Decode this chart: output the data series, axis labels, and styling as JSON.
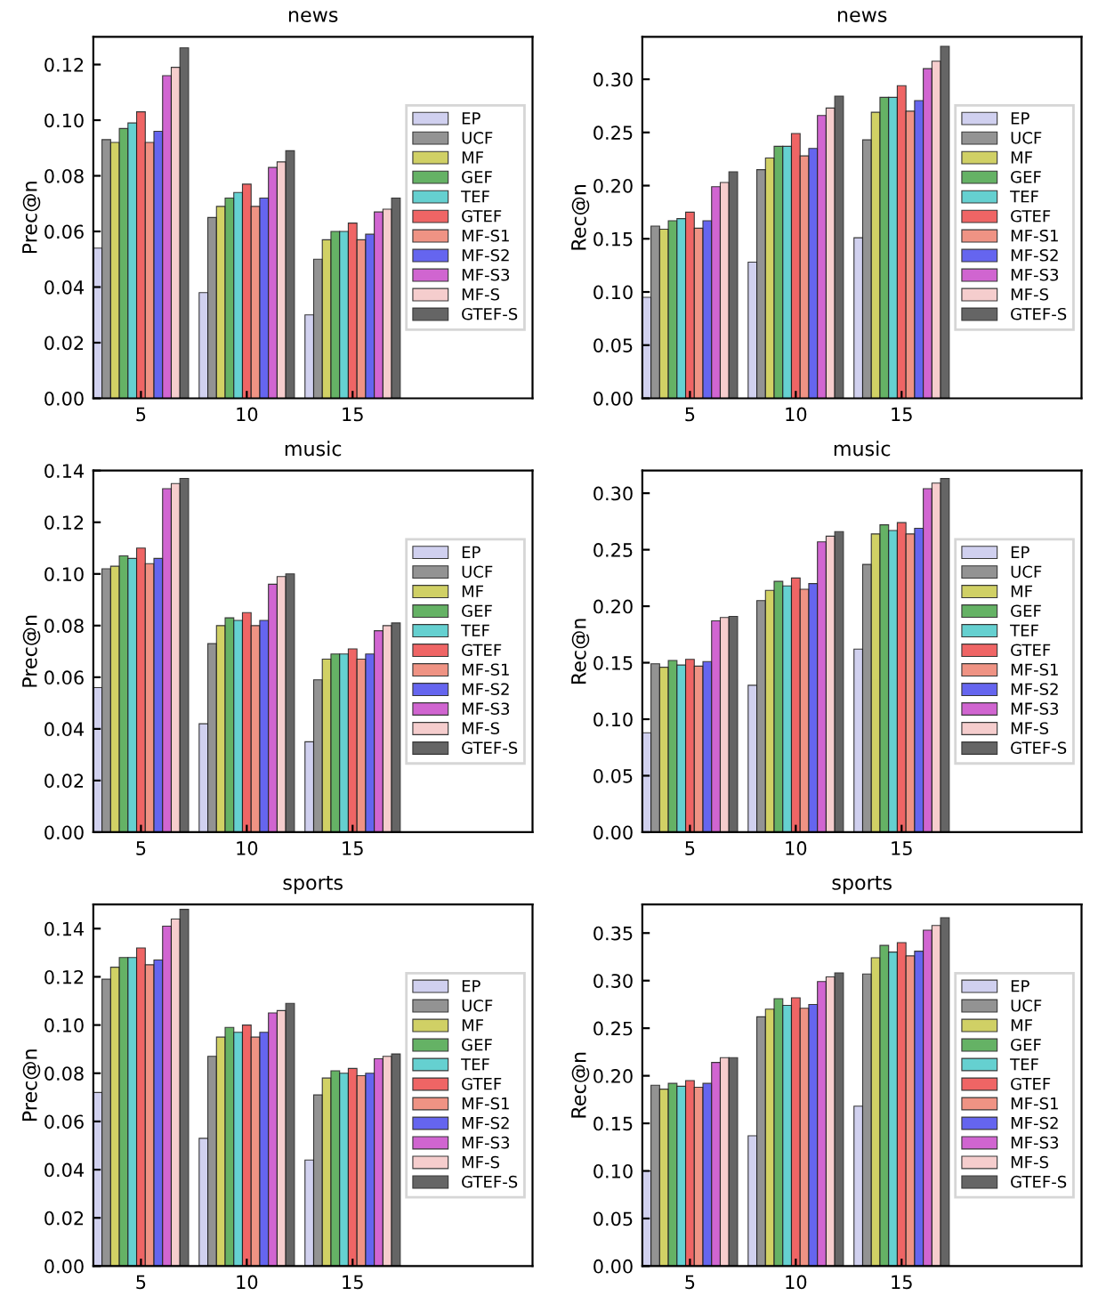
{
  "chart_data": [
    {
      "type": "bar",
      "title": "news",
      "ylabel": "Prec@n",
      "categories": [
        "5",
        "10",
        "15"
      ],
      "ylim": [
        0,
        0.13
      ],
      "yticks": [
        {
          "value": 0,
          "label": "0.00"
        },
        0.02,
        0.04,
        0.06,
        0.08,
        {
          "value": 0.1,
          "label": "0.10"
        },
        0.12
      ],
      "legend": "right",
      "grid": false,
      "series": [
        {
          "name": "EP",
          "color": "#ccccee",
          "values": [
            0.054,
            0.038,
            0.03
          ]
        },
        {
          "name": "UCF",
          "color": "#888888",
          "values": [
            0.093,
            0.065,
            0.05
          ]
        },
        {
          "name": "MF",
          "color": "#cccc55",
          "values": [
            0.092,
            0.069,
            0.057
          ]
        },
        {
          "name": "GEF",
          "color": "#55aa55",
          "values": [
            0.097,
            0.072,
            0.06
          ]
        },
        {
          "name": "TEF",
          "color": "#55cccc",
          "values": [
            0.099,
            0.074,
            0.06
          ]
        },
        {
          "name": "GTEF",
          "color": "#ee5555",
          "values": [
            0.103,
            0.077,
            0.063
          ]
        },
        {
          "name": "MF-S1",
          "color": "#ee8877",
          "values": [
            0.092,
            0.069,
            0.057
          ]
        },
        {
          "name": "MF-S2",
          "color": "#5555ee",
          "values": [
            0.096,
            0.072,
            0.059
          ]
        },
        {
          "name": "MF-S3",
          "color": "#cc55cc",
          "values": [
            0.116,
            0.083,
            0.067
          ]
        },
        {
          "name": "MF-S",
          "color": "#f5c8c8",
          "values": [
            0.119,
            0.085,
            0.068
          ]
        },
        {
          "name": "GTEF-S",
          "color": "#555555",
          "values": [
            0.126,
            0.089,
            0.072
          ]
        }
      ]
    },
    {
      "type": "bar",
      "title": "news",
      "ylabel": "Rec@n",
      "categories": [
        "5",
        "10",
        "15"
      ],
      "ylim": [
        0,
        0.34
      ],
      "yticks": [
        {
          "value": 0,
          "label": "0.00"
        },
        0.05,
        {
          "value": 0.1,
          "label": "0.10"
        },
        0.15,
        {
          "value": 0.2,
          "label": "0.20"
        },
        0.25,
        {
          "value": 0.3,
          "label": "0.30"
        }
      ],
      "legend": "right",
      "grid": false,
      "series": [
        {
          "name": "EP",
          "color": "#ccccee",
          "values": [
            0.095,
            0.128,
            0.151
          ]
        },
        {
          "name": "UCF",
          "color": "#888888",
          "values": [
            0.162,
            0.215,
            0.243
          ]
        },
        {
          "name": "MF",
          "color": "#cccc55",
          "values": [
            0.159,
            0.226,
            0.269
          ]
        },
        {
          "name": "GEF",
          "color": "#55aa55",
          "values": [
            0.167,
            0.237,
            0.283
          ]
        },
        {
          "name": "TEF",
          "color": "#55cccc",
          "values": [
            0.169,
            0.237,
            0.283
          ]
        },
        {
          "name": "GTEF",
          "color": "#ee5555",
          "values": [
            0.175,
            0.249,
            0.294
          ]
        },
        {
          "name": "MF-S1",
          "color": "#ee8877",
          "values": [
            0.16,
            0.228,
            0.27
          ]
        },
        {
          "name": "MF-S2",
          "color": "#5555ee",
          "values": [
            0.167,
            0.235,
            0.28
          ]
        },
        {
          "name": "MF-S3",
          "color": "#cc55cc",
          "values": [
            0.199,
            0.266,
            0.31
          ]
        },
        {
          "name": "MF-S",
          "color": "#f5c8c8",
          "values": [
            0.203,
            0.273,
            0.317
          ]
        },
        {
          "name": "GTEF-S",
          "color": "#555555",
          "values": [
            0.213,
            0.284,
            0.331
          ]
        }
      ]
    },
    {
      "type": "bar",
      "title": "music",
      "ylabel": "Prec@n",
      "categories": [
        "5",
        "10",
        "15"
      ],
      "ylim": [
        0,
        0.14
      ],
      "yticks": [
        {
          "value": 0,
          "label": "0.00"
        },
        0.02,
        0.04,
        0.06,
        0.08,
        {
          "value": 0.1,
          "label": "0.10"
        },
        0.12,
        0.14
      ],
      "legend": "right",
      "grid": false,
      "series": [
        {
          "name": "EP",
          "color": "#ccccee",
          "values": [
            0.056,
            0.042,
            0.035
          ]
        },
        {
          "name": "UCF",
          "color": "#888888",
          "values": [
            0.102,
            0.073,
            0.059
          ]
        },
        {
          "name": "MF",
          "color": "#cccc55",
          "values": [
            0.103,
            0.08,
            0.067
          ]
        },
        {
          "name": "GEF",
          "color": "#55aa55",
          "values": [
            0.107,
            0.083,
            0.069
          ]
        },
        {
          "name": "TEF",
          "color": "#55cccc",
          "values": [
            0.106,
            0.082,
            0.069
          ]
        },
        {
          "name": "GTEF",
          "color": "#ee5555",
          "values": [
            0.11,
            0.085,
            0.071
          ]
        },
        {
          "name": "MF-S1",
          "color": "#ee8877",
          "values": [
            0.104,
            0.08,
            0.067
          ]
        },
        {
          "name": "MF-S2",
          "color": "#5555ee",
          "values": [
            0.106,
            0.082,
            0.069
          ]
        },
        {
          "name": "MF-S3",
          "color": "#cc55cc",
          "values": [
            0.133,
            0.096,
            0.078
          ]
        },
        {
          "name": "MF-S",
          "color": "#f5c8c8",
          "values": [
            0.135,
            0.099,
            0.08
          ]
        },
        {
          "name": "GTEF-S",
          "color": "#555555",
          "values": [
            0.137,
            0.1,
            0.081
          ]
        }
      ]
    },
    {
      "type": "bar",
      "title": "music",
      "ylabel": "Rec@n",
      "categories": [
        "5",
        "10",
        "15"
      ],
      "ylim": [
        0,
        0.32
      ],
      "yticks": [
        {
          "value": 0,
          "label": "0.00"
        },
        0.05,
        {
          "value": 0.1,
          "label": "0.10"
        },
        0.15,
        {
          "value": 0.2,
          "label": "0.20"
        },
        0.25,
        {
          "value": 0.3,
          "label": "0.30"
        }
      ],
      "legend": "right",
      "grid": false,
      "series": [
        {
          "name": "EP",
          "color": "#ccccee",
          "values": [
            0.088,
            0.13,
            0.162
          ]
        },
        {
          "name": "UCF",
          "color": "#888888",
          "values": [
            0.149,
            0.205,
            0.237
          ]
        },
        {
          "name": "MF",
          "color": "#cccc55",
          "values": [
            0.146,
            0.214,
            0.264
          ]
        },
        {
          "name": "GEF",
          "color": "#55aa55",
          "values": [
            0.152,
            0.222,
            0.272
          ]
        },
        {
          "name": "TEF",
          "color": "#55cccc",
          "values": [
            0.148,
            0.218,
            0.267
          ]
        },
        {
          "name": "GTEF",
          "color": "#ee5555",
          "values": [
            0.153,
            0.225,
            0.274
          ]
        },
        {
          "name": "MF-S1",
          "color": "#ee8877",
          "values": [
            0.147,
            0.215,
            0.264
          ]
        },
        {
          "name": "MF-S2",
          "color": "#5555ee",
          "values": [
            0.151,
            0.22,
            0.269
          ]
        },
        {
          "name": "MF-S3",
          "color": "#cc55cc",
          "values": [
            0.187,
            0.257,
            0.304
          ]
        },
        {
          "name": "MF-S",
          "color": "#f5c8c8",
          "values": [
            0.19,
            0.262,
            0.309
          ]
        },
        {
          "name": "GTEF-S",
          "color": "#555555",
          "values": [
            0.191,
            0.266,
            0.313
          ]
        }
      ]
    },
    {
      "type": "bar",
      "title": "sports",
      "ylabel": "Prec@n",
      "categories": [
        "5",
        "10",
        "15"
      ],
      "ylim": [
        0,
        0.15
      ],
      "yticks": [
        {
          "value": 0,
          "label": "0.00"
        },
        0.02,
        0.04,
        0.06,
        0.08,
        {
          "value": 0.1,
          "label": "0.10"
        },
        0.12,
        0.14
      ],
      "legend": "right",
      "grid": false,
      "series": [
        {
          "name": "EP",
          "color": "#ccccee",
          "values": [
            0.072,
            0.053,
            0.044
          ]
        },
        {
          "name": "UCF",
          "color": "#888888",
          "values": [
            0.119,
            0.087,
            0.071
          ]
        },
        {
          "name": "MF",
          "color": "#cccc55",
          "values": [
            0.124,
            0.095,
            0.078
          ]
        },
        {
          "name": "GEF",
          "color": "#55aa55",
          "values": [
            0.128,
            0.099,
            0.081
          ]
        },
        {
          "name": "TEF",
          "color": "#55cccc",
          "values": [
            0.128,
            0.097,
            0.08
          ]
        },
        {
          "name": "GTEF",
          "color": "#ee5555",
          "values": [
            0.132,
            0.1,
            0.082
          ]
        },
        {
          "name": "MF-S1",
          "color": "#ee8877",
          "values": [
            0.125,
            0.095,
            0.079
          ]
        },
        {
          "name": "MF-S2",
          "color": "#5555ee",
          "values": [
            0.127,
            0.097,
            0.08
          ]
        },
        {
          "name": "MF-S3",
          "color": "#cc55cc",
          "values": [
            0.141,
            0.105,
            0.086
          ]
        },
        {
          "name": "MF-S",
          "color": "#f5c8c8",
          "values": [
            0.144,
            0.106,
            0.087
          ]
        },
        {
          "name": "GTEF-S",
          "color": "#555555",
          "values": [
            0.148,
            0.109,
            0.088
          ]
        }
      ]
    },
    {
      "type": "bar",
      "title": "sports",
      "ylabel": "Rec@n",
      "categories": [
        "5",
        "10",
        "15"
      ],
      "ylim": [
        0,
        0.38
      ],
      "yticks": [
        {
          "value": 0,
          "label": "0.00"
        },
        0.05,
        {
          "value": 0.1,
          "label": "0.10"
        },
        0.15,
        {
          "value": 0.2,
          "label": "0.20"
        },
        0.25,
        {
          "value": 0.3,
          "label": "0.30"
        },
        0.35
      ],
      "legend": "right",
      "grid": false,
      "series": [
        {
          "name": "EP",
          "color": "#ccccee",
          "values": [
            0.1,
            0.137,
            0.168
          ]
        },
        {
          "name": "UCF",
          "color": "#888888",
          "values": [
            0.19,
            0.262,
            0.307
          ]
        },
        {
          "name": "MF",
          "color": "#cccc55",
          "values": [
            0.186,
            0.27,
            0.324
          ]
        },
        {
          "name": "GEF",
          "color": "#55aa55",
          "values": [
            0.192,
            0.281,
            0.337
          ]
        },
        {
          "name": "TEF",
          "color": "#55cccc",
          "values": [
            0.189,
            0.274,
            0.33
          ]
        },
        {
          "name": "GTEF",
          "color": "#ee5555",
          "values": [
            0.195,
            0.282,
            0.34
          ]
        },
        {
          "name": "MF-S1",
          "color": "#ee8877",
          "values": [
            0.188,
            0.271,
            0.326
          ]
        },
        {
          "name": "MF-S2",
          "color": "#5555ee",
          "values": [
            0.192,
            0.275,
            0.331
          ]
        },
        {
          "name": "MF-S3",
          "color": "#cc55cc",
          "values": [
            0.214,
            0.299,
            0.353
          ]
        },
        {
          "name": "MF-S",
          "color": "#f5c8c8",
          "values": [
            0.219,
            0.304,
            0.358
          ]
        },
        {
          "name": "GTEF-S",
          "color": "#555555",
          "values": [
            0.219,
            0.308,
            0.366
          ]
        }
      ]
    }
  ]
}
